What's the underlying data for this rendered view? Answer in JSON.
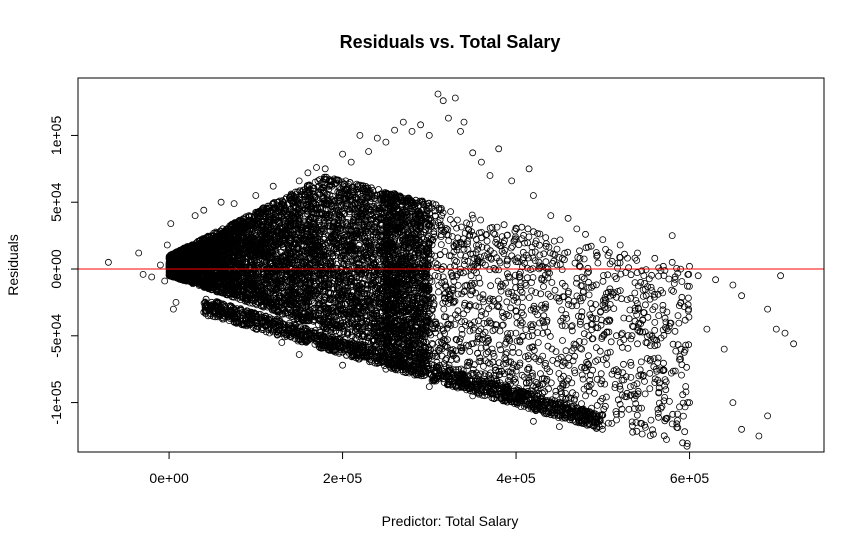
{
  "chart_data": {
    "type": "scatter",
    "title": "Residuals vs. Total Salary",
    "xlabel": "Predictor: Total Salary",
    "ylabel": "Residuals",
    "xlim": [
      -105000,
      755000
    ],
    "ylim": [
      -137000,
      143000
    ],
    "x_ticks": [
      {
        "value": 0,
        "label": "0e+00"
      },
      {
        "value": 200000,
        "label": "2e+05"
      },
      {
        "value": 400000,
        "label": "4e+05"
      },
      {
        "value": 600000,
        "label": "6e+05"
      }
    ],
    "y_ticks": [
      {
        "value": -100000,
        "label": "-1e+05"
      },
      {
        "value": -50000,
        "label": "-5e+04"
      },
      {
        "value": 0,
        "label": "0e+00"
      },
      {
        "value": 50000,
        "label": "5e+04"
      },
      {
        "value": 100000,
        "label": "1e+05"
      }
    ],
    "reference_line": {
      "y": 0,
      "color": "#ff0000"
    },
    "point_style": {
      "shape": "open-circle",
      "color": "#000000"
    },
    "grid": false,
    "legend": "none",
    "series": [
      {
        "points": [
          [
            -70000,
            5000
          ],
          [
            -35000,
            12000
          ],
          [
            -30000,
            -4000
          ],
          [
            -20000,
            -6000
          ],
          [
            -10000,
            3000
          ],
          [
            -5000,
            -9000
          ],
          [
            -2000,
            18000
          ],
          [
            2000,
            34000
          ],
          [
            5000,
            -30000
          ],
          [
            8000,
            -25000
          ],
          [
            30000,
            40000
          ],
          [
            40000,
            44000
          ],
          [
            45000,
            -35000
          ],
          [
            60000,
            50000
          ],
          [
            75000,
            49000
          ],
          [
            80000,
            -40000
          ],
          [
            100000,
            55000
          ],
          [
            120000,
            62000
          ],
          [
            130000,
            -55000
          ],
          [
            150000,
            66000
          ],
          [
            160000,
            72000
          ],
          [
            170000,
            76000
          ],
          [
            180000,
            75000
          ],
          [
            200000,
            86000
          ],
          [
            210000,
            80000
          ],
          [
            220000,
            100000
          ],
          [
            230000,
            88000
          ],
          [
            240000,
            98000
          ],
          [
            250000,
            95000
          ],
          [
            260000,
            104000
          ],
          [
            270000,
            110000
          ],
          [
            280000,
            103000
          ],
          [
            290000,
            108000
          ],
          [
            300000,
            100000
          ],
          [
            310000,
            131000
          ],
          [
            316000,
            126000
          ],
          [
            322000,
            113000
          ],
          [
            330000,
            128000
          ],
          [
            336000,
            103000
          ],
          [
            340000,
            110000
          ],
          [
            350000,
            87000
          ],
          [
            360000,
            80000
          ],
          [
            370000,
            70000
          ],
          [
            380000,
            90000
          ],
          [
            395000,
            66000
          ],
          [
            415000,
            75000
          ],
          [
            420000,
            55000
          ],
          [
            440000,
            40000
          ],
          [
            460000,
            38000
          ],
          [
            470000,
            30000
          ],
          [
            480000,
            26000
          ],
          [
            500000,
            22000
          ],
          [
            520000,
            18000
          ],
          [
            540000,
            12000
          ],
          [
            560000,
            8000
          ],
          [
            580000,
            5000
          ],
          [
            600000,
            2000
          ],
          [
            610000,
            -5000
          ],
          [
            630000,
            -8000
          ],
          [
            650000,
            -12000
          ],
          [
            660000,
            -20000
          ],
          [
            690000,
            -30000
          ],
          [
            710000,
            -48000
          ],
          [
            720000,
            -56000
          ],
          [
            650000,
            -100000
          ],
          [
            660000,
            -120000
          ],
          [
            680000,
            -125000
          ],
          [
            690000,
            -110000
          ],
          [
            600000,
            -100000
          ],
          [
            560000,
            -85000
          ],
          [
            520000,
            -90000
          ],
          [
            480000,
            -95000
          ],
          [
            450000,
            -118000
          ],
          [
            420000,
            -114000
          ],
          [
            350000,
            -95000
          ],
          [
            300000,
            -88000
          ],
          [
            250000,
            -75000
          ],
          [
            200000,
            -72000
          ],
          [
            150000,
            -64000
          ],
          [
            100000,
            -45000
          ],
          [
            60000,
            -30000
          ],
          [
            520000,
            -55000
          ],
          [
            560000,
            -40000
          ],
          [
            590000,
            -25000
          ],
          [
            620000,
            -45000
          ],
          [
            640000,
            -60000
          ],
          [
            700000,
            -45000
          ],
          [
            705000,
            -5000
          ],
          [
            580000,
            25000
          ],
          [
            550000,
            -20000
          ]
        ]
      }
    ]
  }
}
